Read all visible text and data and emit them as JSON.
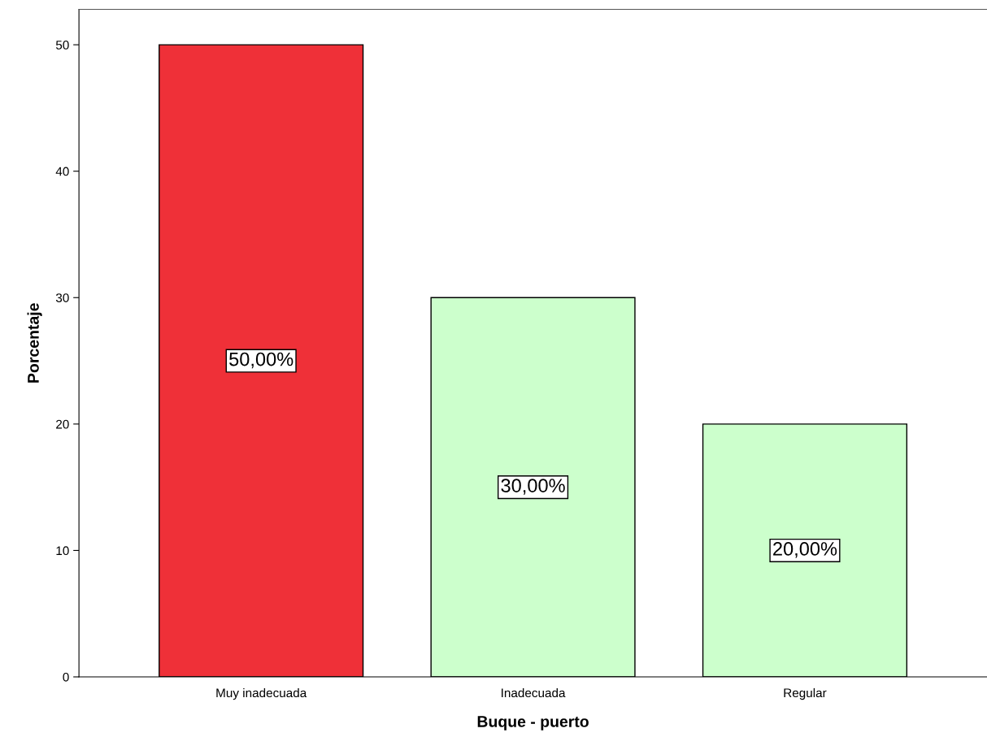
{
  "chart_data": {
    "type": "bar",
    "xlabel": "Buque - puerto",
    "ylabel": "Porcentaje",
    "categories": [
      "Muy inadecuada",
      "Inadecuada",
      "Regular"
    ],
    "values": [
      50,
      30,
      20
    ],
    "colors": [
      "#ef3038",
      "#ccffcc",
      "#ccffcc"
    ],
    "value_labels": [
      "50,00%",
      "30,00%",
      "20,00%"
    ],
    "ylim": [
      0,
      52.8
    ],
    "yticks": [
      0,
      10,
      20,
      30,
      40,
      50
    ],
    "grid": false,
    "legend": false
  }
}
